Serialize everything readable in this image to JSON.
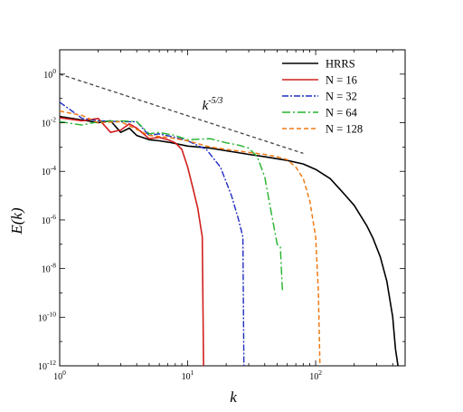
{
  "chart_data": {
    "type": "line",
    "xscale": "log",
    "yscale": "log",
    "xlim": [
      1,
      500
    ],
    "ylim": [
      1e-12,
      10
    ],
    "xlabel": "k",
    "ylabel": "E(k)",
    "grid": false,
    "legend_position": "top-right",
    "x_ticks": [
      {
        "value": 1,
        "base": "10",
        "exp": "0"
      },
      {
        "value": 10,
        "base": "10",
        "exp": "1"
      },
      {
        "value": 100,
        "base": "10",
        "exp": "2"
      }
    ],
    "y_ticks": [
      {
        "value": 1,
        "base": "10",
        "exp": "0"
      },
      {
        "value": 0.01,
        "base": "10",
        "exp": "-2"
      },
      {
        "value": 0.0001,
        "base": "10",
        "exp": "-4"
      },
      {
        "value": 1e-06,
        "base": "10",
        "exp": "-6"
      },
      {
        "value": 1e-08,
        "base": "10",
        "exp": "-8"
      },
      {
        "value": 1e-10,
        "base": "10",
        "exp": "-10"
      },
      {
        "value": 1e-12,
        "base": "10",
        "exp": "-12"
      }
    ],
    "annotation": {
      "text_base": "k",
      "text_exp": "-5/3",
      "line": [
        [
          1,
          1
        ],
        [
          80,
          0.00055
        ]
      ],
      "label_at": [
        13,
        0.035
      ]
    },
    "series": [
      {
        "name": "HRRS",
        "color": "#000000",
        "dash": "",
        "width": 1.6,
        "points": [
          [
            1,
            0.018
          ],
          [
            1.5,
            0.013
          ],
          [
            2,
            0.01
          ],
          [
            2.5,
            0.012
          ],
          [
            3,
            0.004
          ],
          [
            3.5,
            0.006
          ],
          [
            4,
            0.003
          ],
          [
            5,
            0.002
          ],
          [
            6,
            0.0018
          ],
          [
            7,
            0.0016
          ],
          [
            8,
            0.0014
          ],
          [
            10,
            0.0011
          ],
          [
            15,
            0.0009
          ],
          [
            20,
            0.0007
          ],
          [
            30,
            0.0005
          ],
          [
            40,
            0.0004
          ],
          [
            60,
            0.00028
          ],
          [
            80,
            0.0002
          ],
          [
            100,
            0.00012
          ],
          [
            130,
            5e-05
          ],
          [
            160,
            1.5e-05
          ],
          [
            200,
            4e-06
          ],
          [
            250,
            6e-07
          ],
          [
            280,
            1.8e-07
          ],
          [
            320,
            3e-08
          ],
          [
            360,
            3e-09
          ],
          [
            400,
            1e-10
          ],
          [
            420,
            5e-12
          ],
          [
            440,
            1e-12
          ]
        ]
      },
      {
        "name": "N = 16",
        "color": "#d0201e",
        "dash": "",
        "width": 1.6,
        "points": [
          [
            1,
            0.016
          ],
          [
            1.5,
            0.012
          ],
          [
            2,
            0.015
          ],
          [
            2.5,
            0.004
          ],
          [
            3,
            0.005
          ],
          [
            3.5,
            0.009
          ],
          [
            4,
            0.006
          ],
          [
            5,
            0.0022
          ],
          [
            6,
            0.0025
          ],
          [
            7,
            0.002
          ],
          [
            8,
            0.0015
          ],
          [
            9,
            0.0008
          ],
          [
            10,
            0.00015
          ],
          [
            11,
            2e-05
          ],
          [
            12,
            3e-06
          ],
          [
            13,
            2e-07
          ],
          [
            13.3,
            1e-12
          ]
        ]
      },
      {
        "name": "N = 32",
        "color": "#1f2bc4",
        "dash": "7,2,2,2",
        "width": 1.4,
        "points": [
          [
            1,
            0.07
          ],
          [
            1.5,
            0.015
          ],
          [
            2,
            0.012
          ],
          [
            3,
            0.011
          ],
          [
            4,
            0.011
          ],
          [
            5,
            0.003
          ],
          [
            6,
            0.0035
          ],
          [
            8,
            0.0025
          ],
          [
            10,
            0.0018
          ],
          [
            14,
            0.0008
          ],
          [
            18,
            0.00015
          ],
          [
            22,
            1e-05
          ],
          [
            25,
            1e-06
          ],
          [
            27,
            2e-07
          ],
          [
            27.5,
            1e-12
          ]
        ]
      },
      {
        "name": "N = 64",
        "color": "#22b32c",
        "dash": "9,3,2,3",
        "width": 1.4,
        "points": [
          [
            1,
            0.011
          ],
          [
            1.5,
            0.008
          ],
          [
            2,
            0.011
          ],
          [
            3,
            0.012
          ],
          [
            4,
            0.011
          ],
          [
            5,
            0.0035
          ],
          [
            6,
            0.004
          ],
          [
            8,
            0.003
          ],
          [
            10,
            0.002
          ],
          [
            15,
            0.0022
          ],
          [
            20,
            0.0015
          ],
          [
            25,
            0.0012
          ],
          [
            30,
            0.0009
          ],
          [
            35,
            0.0004
          ],
          [
            40,
            6e-05
          ],
          [
            45,
            2e-06
          ],
          [
            50,
            1e-07
          ],
          [
            53,
            8e-08
          ],
          [
            55,
            1.2e-09
          ]
        ]
      },
      {
        "name": "N = 128",
        "color": "#f07a14",
        "dash": "5,3",
        "width": 1.5,
        "points": [
          [
            1,
            0.03
          ],
          [
            1.5,
            0.02
          ],
          [
            2,
            0.01
          ],
          [
            3,
            0.011
          ],
          [
            5,
            0.003
          ],
          [
            7,
            0.0025
          ],
          [
            10,
            0.0018
          ],
          [
            15,
            0.001
          ],
          [
            20,
            0.0008
          ],
          [
            30,
            0.0006
          ],
          [
            40,
            0.0005
          ],
          [
            50,
            0.0004
          ],
          [
            60,
            0.0003
          ],
          [
            70,
            0.00015
          ],
          [
            80,
            5e-05
          ],
          [
            90,
            6e-06
          ],
          [
            100,
            2e-07
          ],
          [
            105,
            1e-09
          ],
          [
            108,
            1e-12
          ]
        ]
      }
    ]
  }
}
